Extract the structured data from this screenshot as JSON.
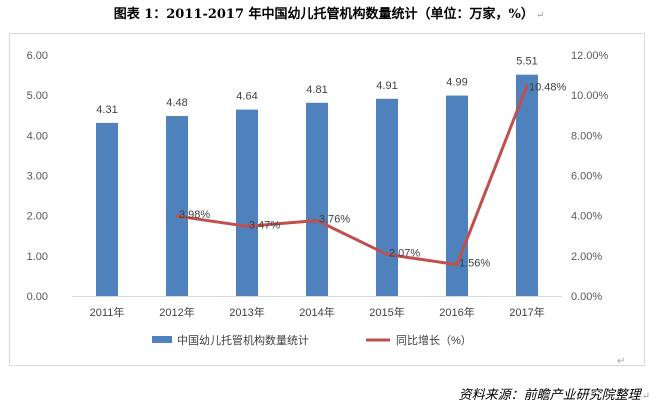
{
  "title": "图表 1：2011-2017 年中国幼儿托管机构数量统计（单位：万家，%）",
  "paragraph_mark": "↵",
  "source": "资料来源：前瞻产业研究院整理",
  "chart_data": {
    "type": "bar",
    "title": "",
    "categories": [
      "2011年",
      "2012年",
      "2013年",
      "2014年",
      "2015年",
      "2016年",
      "2017年"
    ],
    "series": [
      {
        "name": "中国幼儿托管机构数量统计",
        "type": "bar",
        "axis": "left",
        "color": "#4f81bd",
        "values": [
          4.31,
          4.48,
          4.64,
          4.81,
          4.91,
          4.99,
          5.51
        ],
        "labels": [
          "4.31",
          "4.48",
          "4.64",
          "4.81",
          "4.91",
          "4.99",
          "5.51"
        ]
      },
      {
        "name": "同比增长（%）",
        "type": "line",
        "axis": "right",
        "color": "#c0504d",
        "values": [
          null,
          3.98,
          3.47,
          3.76,
          2.07,
          1.56,
          10.48
        ],
        "labels": [
          null,
          "3.98%",
          "3.47%",
          "3.76%",
          "2.07%",
          "1.56%",
          "10.48%"
        ]
      }
    ],
    "y_left": {
      "range": [
        0,
        6
      ],
      "ticks": [
        0,
        1,
        2,
        3,
        4,
        5,
        6
      ],
      "tick_labels": [
        "0.00",
        "1.00",
        "2.00",
        "3.00",
        "4.00",
        "5.00",
        "6.00"
      ]
    },
    "y_right": {
      "range": [
        0,
        12
      ],
      "ticks": [
        0,
        2,
        4,
        6,
        8,
        10,
        12
      ],
      "tick_labels": [
        "0.00%",
        "2.00%",
        "4.00%",
        "6.00%",
        "8.00%",
        "10.00%",
        "12.00%"
      ]
    },
    "grid": false,
    "legend_position": "bottom"
  }
}
